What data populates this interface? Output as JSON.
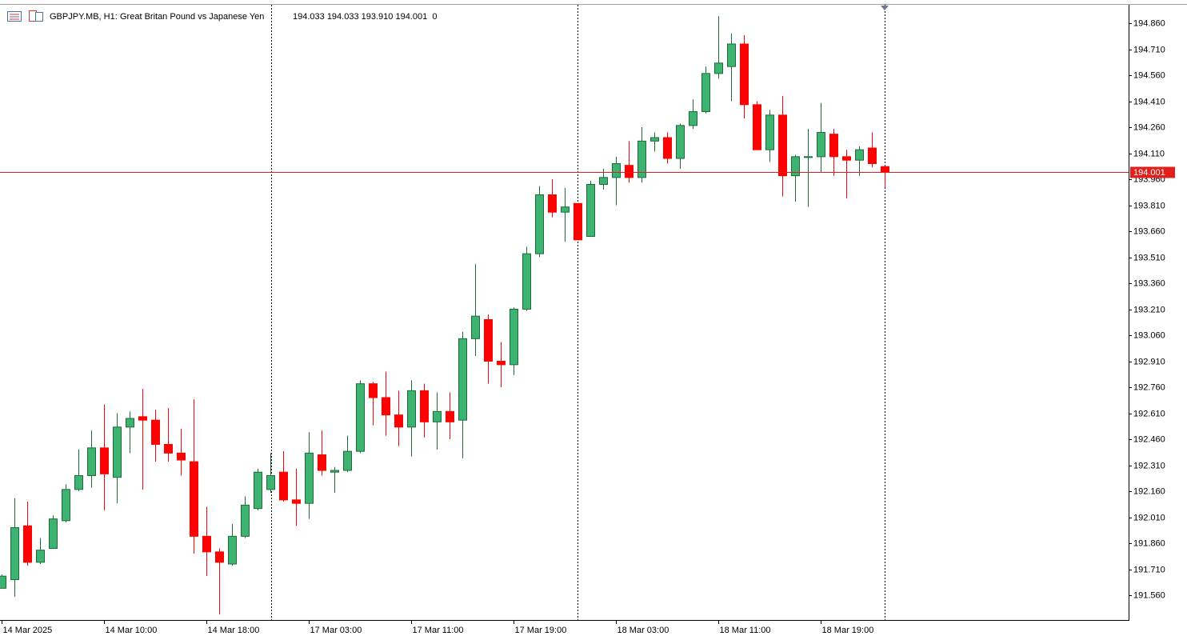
{
  "chart_data": {
    "type": "candlestick",
    "title": "GBPJPY.MB, H1:",
    "subtitle": "Great Britan Pound vs Japanese Yen",
    "quote": "194.033 194.033 193.910 194.001  0",
    "categories": [
      "14 Mar 2025",
      null,
      null,
      null,
      null,
      null,
      null,
      null,
      "14 Mar 10:00",
      null,
      null,
      null,
      null,
      null,
      null,
      null,
      "14 Mar 18:00",
      null,
      null,
      null,
      null,
      null,
      null,
      null,
      "17 Mar 03:00",
      null,
      null,
      null,
      null,
      null,
      null,
      null,
      "17 Mar 11:00",
      null,
      null,
      null,
      null,
      null,
      null,
      null,
      "17 Mar 19:00",
      null,
      null,
      null,
      null,
      null,
      null,
      null,
      "18 Mar 03:00",
      null,
      null,
      null,
      null,
      null,
      null,
      null,
      "18 Mar 11:00",
      null,
      null,
      null,
      null,
      null,
      null,
      null,
      "18 Mar 19:00",
      null,
      null,
      null,
      null,
      null
    ],
    "open": [
      191.6,
      191.65,
      191.96,
      191.75,
      191.83,
      191.99,
      192.17,
      192.25,
      192.41,
      192.24,
      192.53,
      192.59,
      192.57,
      192.43,
      192.38,
      192.33,
      191.9,
      191.81,
      191.74,
      191.9,
      192.06,
      192.17,
      192.27,
      192.11,
      192.09,
      192.37,
      192.27,
      192.28,
      192.39,
      192.78,
      192.7,
      192.6,
      192.53,
      192.74,
      192.56,
      192.62,
      192.57,
      193.04,
      193.15,
      192.91,
      192.89,
      193.21,
      193.53,
      193.87,
      193.77,
      193.82,
      193.63,
      193.93,
      193.97,
      194.04,
      193.97,
      194.18,
      194.2,
      194.08,
      194.27,
      194.35,
      194.57,
      194.61,
      194.74,
      194.39,
      194.13,
      194.33,
      193.98,
      194.09,
      194.09,
      194.22,
      194.09,
      194.07,
      194.14,
      194.033
    ],
    "high": [
      191.68,
      192.12,
      192.1,
      191.89,
      192.02,
      192.2,
      192.4,
      192.51,
      192.66,
      192.61,
      192.62,
      192.75,
      192.63,
      192.64,
      192.52,
      192.69,
      192.07,
      191.83,
      191.97,
      192.13,
      192.29,
      192.38,
      192.39,
      192.29,
      192.5,
      192.51,
      192.3,
      192.48,
      192.8,
      192.79,
      192.85,
      192.74,
      192.8,
      192.78,
      192.73,
      192.73,
      193.08,
      193.47,
      193.18,
      193.02,
      193.22,
      193.57,
      193.92,
      193.96,
      193.91,
      193.82,
      193.95,
      194.02,
      194.09,
      194.18,
      194.26,
      194.23,
      194.23,
      194.28,
      194.42,
      194.61,
      194.9,
      194.8,
      194.79,
      194.41,
      194.36,
      194.44,
      194.1,
      194.25,
      194.4,
      194.25,
      194.13,
      194.15,
      194.23,
      194.033
    ],
    "low": [
      191.6,
      191.55,
      191.73,
      191.74,
      191.83,
      191.98,
      192.16,
      192.18,
      192.05,
      192.09,
      192.38,
      192.17,
      192.33,
      192.33,
      192.25,
      191.8,
      191.67,
      191.45,
      191.73,
      191.89,
      192.05,
      192.15,
      192.1,
      191.96,
      192.0,
      192.25,
      192.15,
      192.27,
      192.38,
      192.54,
      192.48,
      192.42,
      192.36,
      192.47,
      192.4,
      192.46,
      192.35,
      192.94,
      192.78,
      192.76,
      192.83,
      193.2,
      193.51,
      193.74,
      193.6,
      193.61,
      193.63,
      193.9,
      193.81,
      193.94,
      193.94,
      194.12,
      194.05,
      194.02,
      194.25,
      194.34,
      194.54,
      194.41,
      194.31,
      194.13,
      194.06,
      193.86,
      193.83,
      193.8,
      194.0,
      193.98,
      193.85,
      193.98,
      194.03,
      193.91
    ],
    "close": [
      191.67,
      191.95,
      191.75,
      191.82,
      192.0,
      192.17,
      192.25,
      192.41,
      192.26,
      192.53,
      192.58,
      192.57,
      192.43,
      192.38,
      192.34,
      191.9,
      191.81,
      191.75,
      191.9,
      192.08,
      192.27,
      192.25,
      192.11,
      192.09,
      192.38,
      192.28,
      192.28,
      192.39,
      192.78,
      192.7,
      192.6,
      192.53,
      192.74,
      192.56,
      192.62,
      192.56,
      193.04,
      193.17,
      192.91,
      192.89,
      193.21,
      193.53,
      193.87,
      193.77,
      193.8,
      193.61,
      193.93,
      193.97,
      194.05,
      193.97,
      194.18,
      194.2,
      194.08,
      194.27,
      194.35,
      194.57,
      194.63,
      194.74,
      194.39,
      194.13,
      194.33,
      193.98,
      194.09,
      194.09,
      194.23,
      194.09,
      194.07,
      194.13,
      194.05,
      194.001
    ],
    "up_color": "#3cb371",
    "up_edge": "#1e6b3a",
    "down_color": "#ff0000",
    "bid": 194.001,
    "bid_color": "#e0201c",
    "ylim": [
      191.417,
      194.957
    ],
    "yticks": [
      {
        "value": 191.56,
        "label": "191.560"
      },
      {
        "value": 191.71,
        "label": "191.710"
      },
      {
        "value": 191.86,
        "label": "191.860"
      },
      {
        "value": 192.01,
        "label": "192.010"
      },
      {
        "value": 192.16,
        "label": "192.160"
      },
      {
        "value": 192.31,
        "label": "192.310"
      },
      {
        "value": 192.46,
        "label": "192.460"
      },
      {
        "value": 192.61,
        "label": "192.610"
      },
      {
        "value": 192.76,
        "label": "192.760"
      },
      {
        "value": 192.91,
        "label": "192.910"
      },
      {
        "value": 193.06,
        "label": "193.060"
      },
      {
        "value": 193.21,
        "label": "193.210"
      },
      {
        "value": 193.36,
        "label": "193.360"
      },
      {
        "value": 193.51,
        "label": "193.510"
      },
      {
        "value": 193.66,
        "label": "193.660"
      },
      {
        "value": 193.81,
        "label": "193.810"
      },
      {
        "value": 193.96,
        "label": "193.960"
      },
      {
        "value": 194.11,
        "label": "194.110"
      },
      {
        "value": 194.26,
        "label": "194.260"
      },
      {
        "value": 194.41,
        "label": "194.410"
      },
      {
        "value": 194.56,
        "label": "194.560"
      },
      {
        "value": 194.71,
        "label": "194.710"
      },
      {
        "value": 194.86,
        "label": "194.860"
      }
    ],
    "grid": false
  }
}
